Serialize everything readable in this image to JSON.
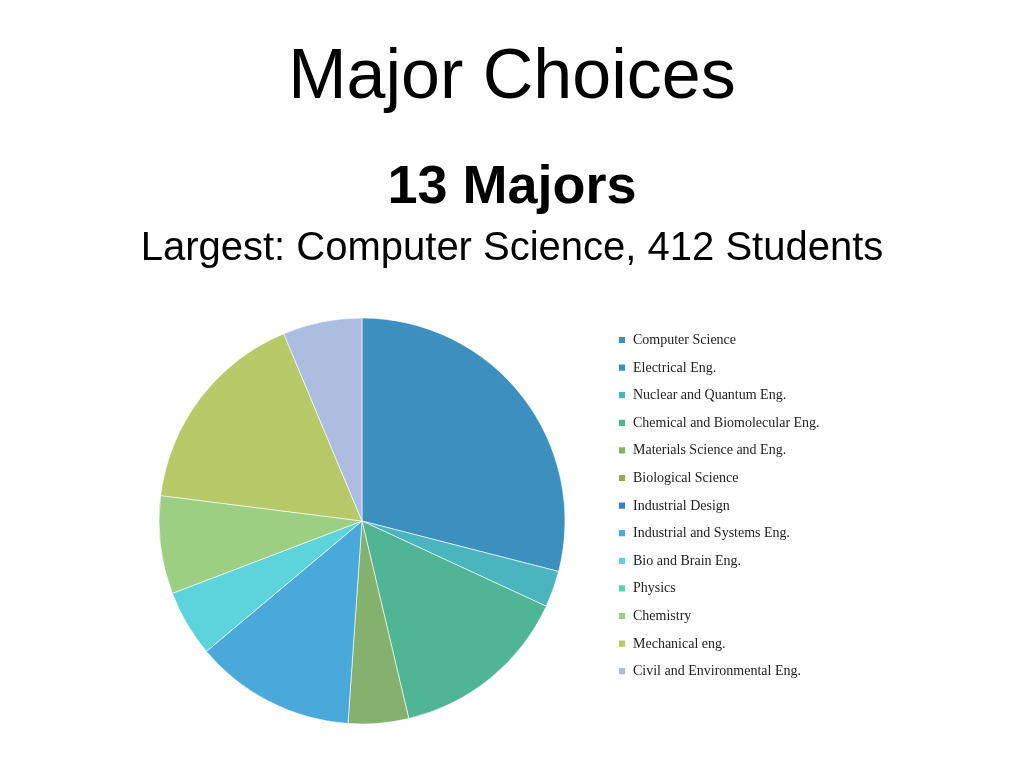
{
  "chart_data": {
    "type": "pie",
    "title": "Major Choices",
    "subtitle": "13 Majors",
    "annotations": [
      "Largest: Computer Science, 412 Students"
    ],
    "categories": [
      "Computer Science",
      "Electrical Eng.",
      "Nuclear and Quantum Eng.",
      "Chemical and Biomolecular Eng.",
      "Materials Science and Eng.",
      "Biological Science",
      "Industrial Design",
      "Industrial and Systems Eng.",
      "Bio and Brain Eng.",
      "Physics",
      "Chemistry",
      "Mechanical eng.",
      "Civil and Environmental Eng."
    ],
    "values": [
      29.0,
      0,
      2.9,
      14.4,
      4.8,
      0,
      0,
      12.8,
      5.3,
      0,
      7.8,
      16.7,
      6.3
    ],
    "colors": [
      "#3d8fbe",
      "#3d8fbe",
      "#4bb5bf",
      "#4fb595",
      "#84b26e",
      "#94a85c",
      "#3a7fc4",
      "#4aa8da",
      "#5dd4dc",
      "#5ecfb0",
      "#9ccf82",
      "#b8c96a",
      "#adbde0"
    ],
    "legend": "right"
  }
}
